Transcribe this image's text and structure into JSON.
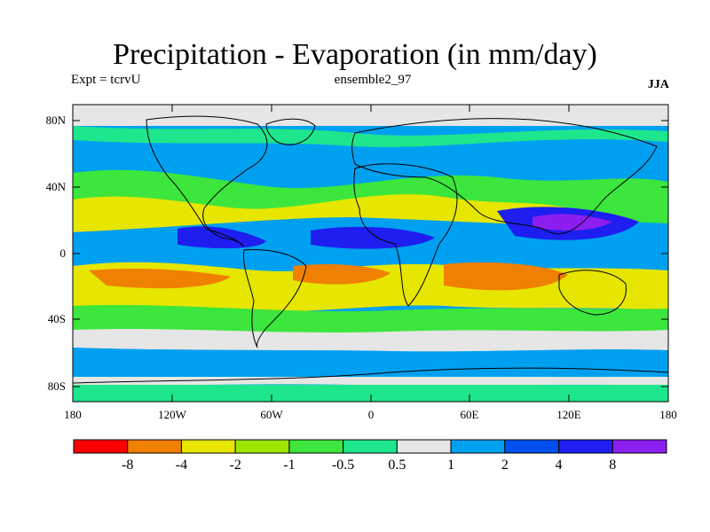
{
  "title": "Precipitation - Evaporation (in mm/day)",
  "subtitle_left": "Expt = tcrvU",
  "subtitle_center": "ensemble2_97",
  "subtitle_right": "JJA",
  "lat_labels": [
    "80N",
    "40N",
    "0",
    "40S",
    "80S"
  ],
  "lon_labels": [
    "180",
    "120W",
    "60W",
    "0",
    "60E",
    "120E",
    "180"
  ],
  "colorbar": {
    "colors": [
      "#ff0000",
      "#f08000",
      "#e6e600",
      "#9ee600",
      "#3ce63c",
      "#1ee68c",
      "#e6e6e6",
      "#00a0f0",
      "#0050f0",
      "#1e1ef0",
      "#8c1ef0"
    ],
    "labels": [
      "-8",
      "-4",
      "-2",
      "-1",
      "-0.5",
      "0.5",
      "1",
      "2",
      "4",
      "8"
    ]
  },
  "colors": {
    "land": "#000000",
    "dry_strong": "#f08000",
    "dry": "#e6e600",
    "neutral": "#e6e6e6",
    "wet": "#00a0f0",
    "wetter": "#0050f0",
    "wettest": "#1e1ef0",
    "extreme": "#8c1ef0"
  }
}
